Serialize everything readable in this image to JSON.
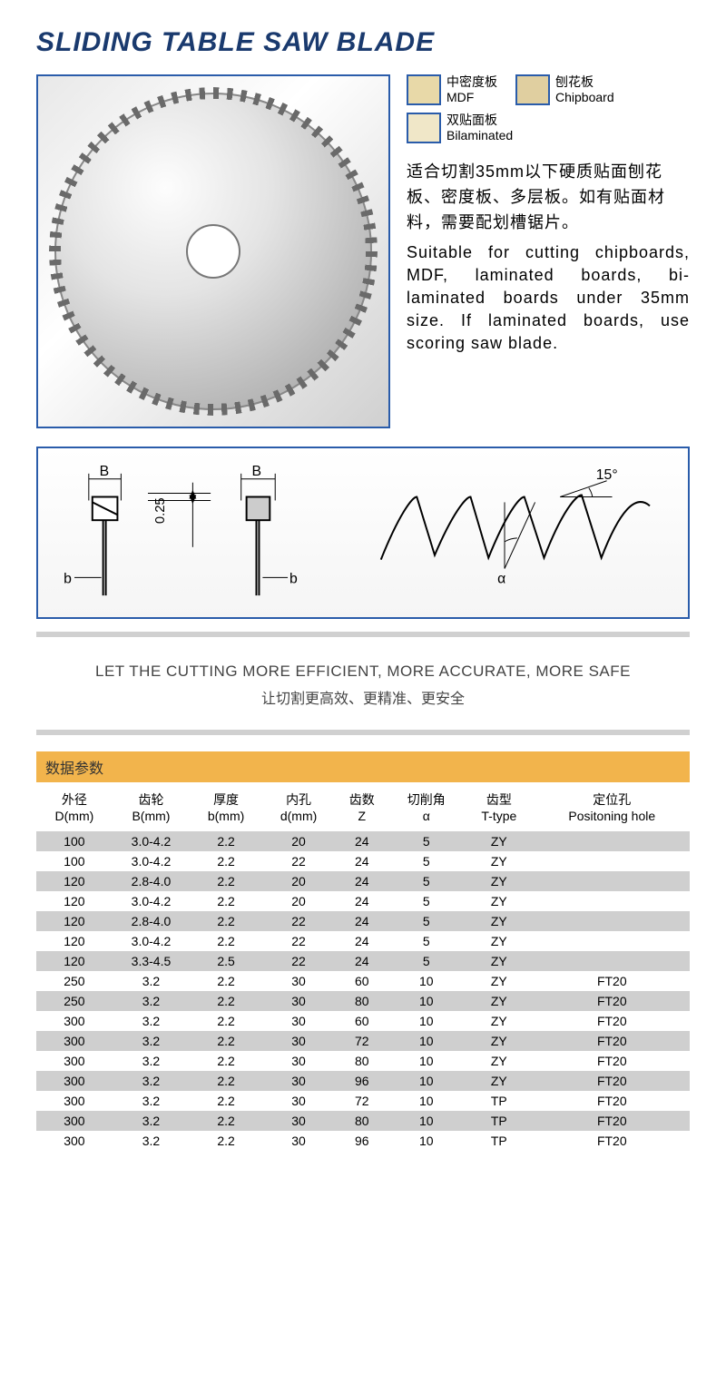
{
  "title": "SLIDING TABLE SAW BLADE",
  "materials": [
    {
      "cn": "中密度板",
      "en": "MDF",
      "color": "#e8d9a8"
    },
    {
      "cn": "刨花板",
      "en": "Chipboard",
      "color": "#e0cfa0"
    },
    {
      "cn": "双贴面板",
      "en": "Bilaminated",
      "color": "#f0e7c8"
    }
  ],
  "desc_cn": "适合切割35mm以下硬质贴面刨花板、密度板、多层板。如有贴面材料，需要配划槽锯片。",
  "desc_en": "Suitable for cutting chipboards, MDF, laminated boards, bi-laminated boards under 35mm size. If laminated boards, use scoring saw blade.",
  "diagram": {
    "B": "B",
    "b": "b",
    "dim": "0.25",
    "angle": "15°",
    "alpha": "α"
  },
  "slogan_en": "LET THE CUTTING MORE EFFICIENT, MORE ACCURATE, MORE SAFE",
  "slogan_cn": "让切割更高效、更精准、更安全",
  "param_title": "数据参数",
  "colors": {
    "title": "#1a3a6e",
    "border": "#2a5caa",
    "param_head": "#f2b44c",
    "stripe": "#cfcfcf",
    "bar": "#d0d0d0"
  },
  "columns": [
    {
      "cn": "外径",
      "en": "D(mm)"
    },
    {
      "cn": "齿轮",
      "en": "B(mm)"
    },
    {
      "cn": "厚度",
      "en": "b(mm)"
    },
    {
      "cn": "内孔",
      "en": "d(mm)"
    },
    {
      "cn": "齿数",
      "en": "Z"
    },
    {
      "cn": "切削角",
      "en": "α"
    },
    {
      "cn": "齿型",
      "en": "T-type"
    },
    {
      "cn": "定位孔",
      "en": "Positoning hole"
    }
  ],
  "rows": [
    [
      "100",
      "3.0-4.2",
      "2.2",
      "20",
      "24",
      "5",
      "ZY",
      ""
    ],
    [
      "100",
      "3.0-4.2",
      "2.2",
      "22",
      "24",
      "5",
      "ZY",
      ""
    ],
    [
      "120",
      "2.8-4.0",
      "2.2",
      "20",
      "24",
      "5",
      "ZY",
      ""
    ],
    [
      "120",
      "3.0-4.2",
      "2.2",
      "20",
      "24",
      "5",
      "ZY",
      ""
    ],
    [
      "120",
      "2.8-4.0",
      "2.2",
      "22",
      "24",
      "5",
      "ZY",
      ""
    ],
    [
      "120",
      "3.0-4.2",
      "2.2",
      "22",
      "24",
      "5",
      "ZY",
      ""
    ],
    [
      "120",
      "3.3-4.5",
      "2.5",
      "22",
      "24",
      "5",
      "ZY",
      ""
    ],
    [
      "250",
      "3.2",
      "2.2",
      "30",
      "60",
      "10",
      "ZY",
      "FT20"
    ],
    [
      "250",
      "3.2",
      "2.2",
      "30",
      "80",
      "10",
      "ZY",
      "FT20"
    ],
    [
      "300",
      "3.2",
      "2.2",
      "30",
      "60",
      "10",
      "ZY",
      "FT20"
    ],
    [
      "300",
      "3.2",
      "2.2",
      "30",
      "72",
      "10",
      "ZY",
      "FT20"
    ],
    [
      "300",
      "3.2",
      "2.2",
      "30",
      "80",
      "10",
      "ZY",
      "FT20"
    ],
    [
      "300",
      "3.2",
      "2.2",
      "30",
      "96",
      "10",
      "ZY",
      "FT20"
    ],
    [
      "300",
      "3.2",
      "2.2",
      "30",
      "72",
      "10",
      "TP",
      "FT20"
    ],
    [
      "300",
      "3.2",
      "2.2",
      "30",
      "80",
      "10",
      "TP",
      "FT20"
    ],
    [
      "300",
      "3.2",
      "2.2",
      "30",
      "96",
      "10",
      "TP",
      "FT20"
    ]
  ]
}
